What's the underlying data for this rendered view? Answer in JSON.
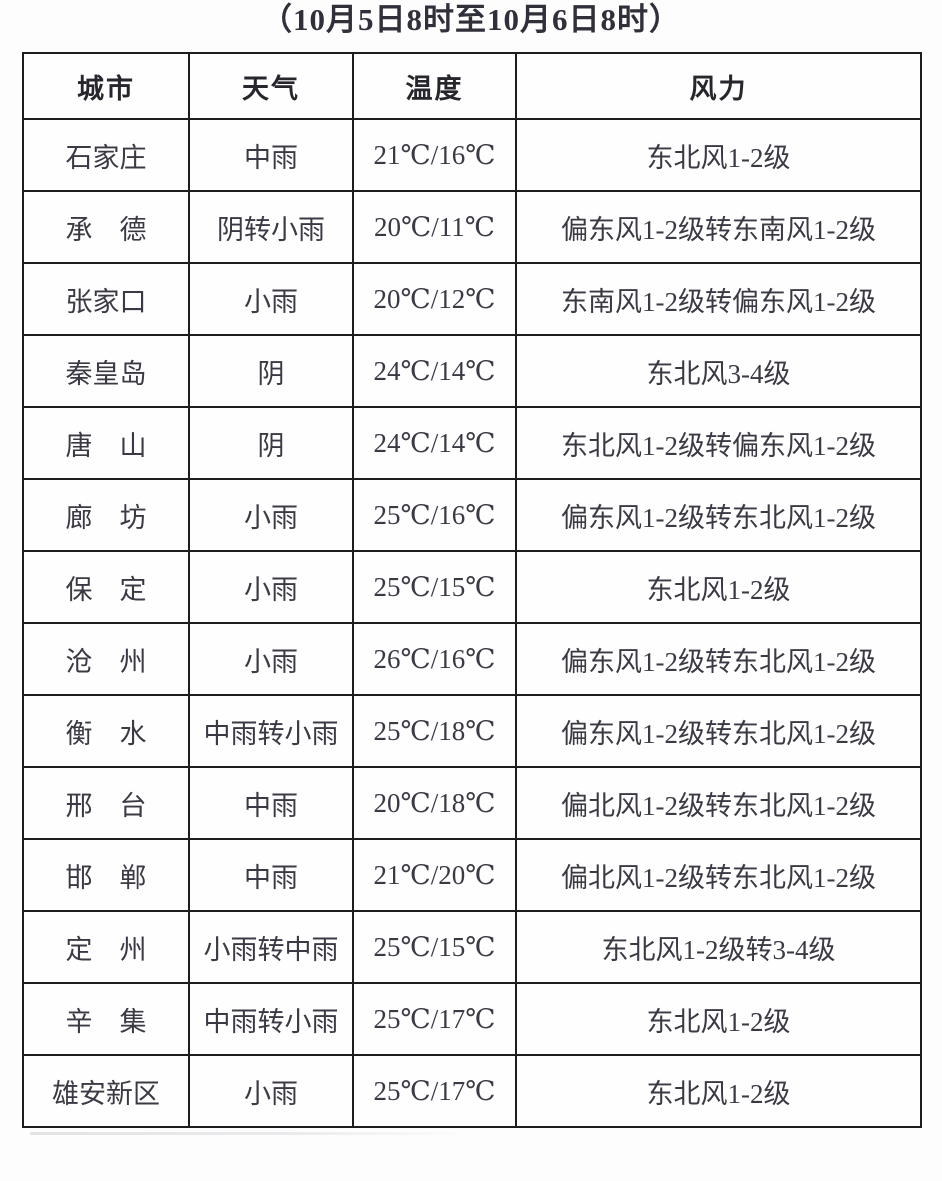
{
  "page": {
    "title": "（10月5日8时至10月6日8时）"
  },
  "colors": {
    "temperature_text": "#c03b3b",
    "body_text": "#3a3a44",
    "header_text": "#26262c",
    "border": "#1d1d1f",
    "background": "#fdfdfe"
  },
  "table": {
    "headers": {
      "city": "城市",
      "weather": "天气",
      "temperature": "温度",
      "wind": "风力"
    },
    "rows": [
      {
        "city": "石家庄",
        "weather": "中雨",
        "temperature": "21℃/16℃",
        "wind": "东北风1-2级"
      },
      {
        "city": "承　德",
        "weather": "阴转小雨",
        "temperature": "20℃/11℃",
        "wind": "偏东风1-2级转东南风1-2级"
      },
      {
        "city": "张家口",
        "weather": "小雨",
        "temperature": "20℃/12℃",
        "wind": "东南风1-2级转偏东风1-2级"
      },
      {
        "city": "秦皇岛",
        "weather": "阴",
        "temperature": "24℃/14℃",
        "wind": "东北风3-4级"
      },
      {
        "city": "唐　山",
        "weather": "阴",
        "temperature": "24℃/14℃",
        "wind": "东北风1-2级转偏东风1-2级"
      },
      {
        "city": "廊　坊",
        "weather": "小雨",
        "temperature": "25℃/16℃",
        "wind": "偏东风1-2级转东北风1-2级"
      },
      {
        "city": "保　定",
        "weather": "小雨",
        "temperature": "25℃/15℃",
        "wind": "东北风1-2级"
      },
      {
        "city": "沧　州",
        "weather": "小雨",
        "temperature": "26℃/16℃",
        "wind": "偏东风1-2级转东北风1-2级"
      },
      {
        "city": "衡　水",
        "weather": "中雨转小雨",
        "temperature": "25℃/18℃",
        "wind": "偏东风1-2级转东北风1-2级"
      },
      {
        "city": "邢　台",
        "weather": "中雨",
        "temperature": "20℃/18℃",
        "wind": "偏北风1-2级转东北风1-2级"
      },
      {
        "city": "邯　郸",
        "weather": "中雨",
        "temperature": "21℃/20℃",
        "wind": "偏北风1-2级转东北风1-2级"
      },
      {
        "city": "定　州",
        "weather": "小雨转中雨",
        "temperature": "25℃/15℃",
        "wind": "东北风1-2级转3-4级"
      },
      {
        "city": "辛　集",
        "weather": "中雨转小雨",
        "temperature": "25℃/17℃",
        "wind": "东北风1-2级"
      },
      {
        "city": "雄安新区",
        "weather": "小雨",
        "temperature": "25℃/17℃",
        "wind": "东北风1-2级"
      }
    ]
  }
}
